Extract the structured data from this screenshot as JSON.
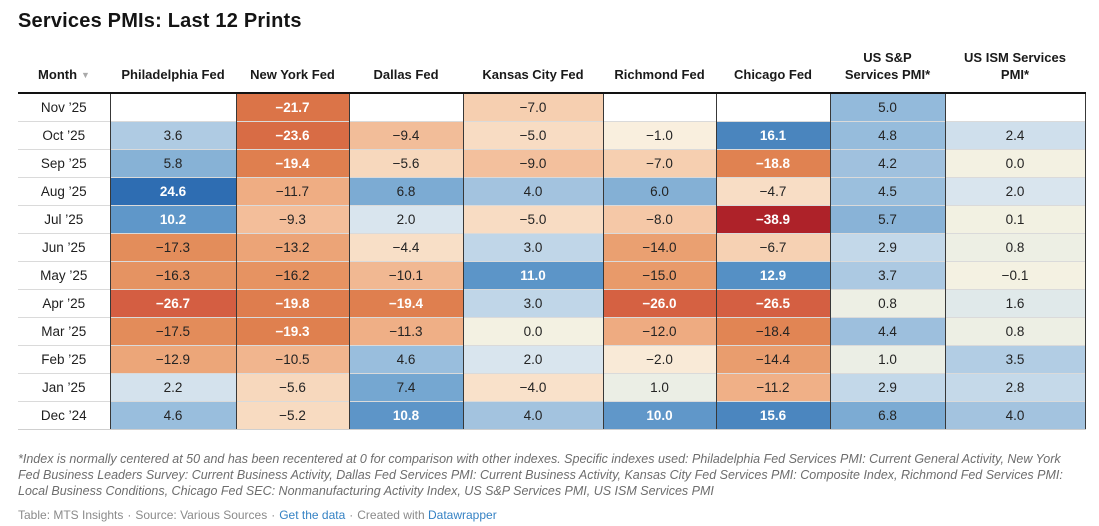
{
  "title": "Services PMIs: Last 12 Prints",
  "chart_data": {
    "type": "heatmap",
    "title": "Services PMIs: Last 12 Prints",
    "row_header": {
      "label": "Month",
      "sort_icon": "▼",
      "sort_direction": "descending"
    },
    "columns": [
      "Philadelphia Fed",
      "New York Fed",
      "Dallas Fed",
      "Kansas City Fed",
      "Richmond Fed",
      "Chicago Fed",
      "US S&P Services PMI*",
      "US ISM Services PMI*"
    ],
    "rows": [
      {
        "month": "Nov ’25",
        "values": [
          null,
          -21.7,
          null,
          -7.0,
          null,
          null,
          5.0,
          null
        ]
      },
      {
        "month": "Oct ’25",
        "values": [
          3.6,
          -23.6,
          -9.4,
          -5.0,
          -1.0,
          16.1,
          4.8,
          2.4
        ]
      },
      {
        "month": "Sep ’25",
        "values": [
          5.8,
          -19.4,
          -5.6,
          -9.0,
          -7.0,
          -18.8,
          4.2,
          0.0
        ]
      },
      {
        "month": "Aug ’25",
        "values": [
          24.6,
          -11.7,
          6.8,
          4.0,
          6.0,
          -4.7,
          4.5,
          2.0
        ]
      },
      {
        "month": "Jul ’25",
        "values": [
          10.2,
          -9.3,
          2.0,
          -5.0,
          -8.0,
          -38.9,
          5.7,
          0.1
        ]
      },
      {
        "month": "Jun ’25",
        "values": [
          -17.3,
          -13.2,
          -4.4,
          3.0,
          -14.0,
          -6.7,
          2.9,
          0.8
        ]
      },
      {
        "month": "May ’25",
        "values": [
          -16.3,
          -16.2,
          -10.1,
          11.0,
          -15.0,
          12.9,
          3.7,
          -0.1
        ]
      },
      {
        "month": "Apr ’25",
        "values": [
          -26.7,
          -19.8,
          -19.4,
          3.0,
          -26.0,
          -26.5,
          0.8,
          1.6
        ]
      },
      {
        "month": "Mar ’25",
        "values": [
          -17.5,
          -19.3,
          -11.3,
          0.0,
          -12.0,
          -18.4,
          4.4,
          0.8
        ]
      },
      {
        "month": "Feb ’25",
        "values": [
          -12.9,
          -10.5,
          4.6,
          2.0,
          -2.0,
          -14.4,
          1.0,
          3.5
        ]
      },
      {
        "month": "Jan ’25",
        "values": [
          2.2,
          -5.6,
          7.4,
          -4.0,
          1.0,
          -11.2,
          2.9,
          2.8
        ]
      },
      {
        "month": "Dec ’24",
        "values": [
          4.6,
          -5.2,
          10.8,
          4.0,
          10.0,
          15.6,
          6.8,
          4.0
        ]
      }
    ],
    "color_scale": {
      "stops": [
        [
          -40,
          "#aa1d27"
        ],
        [
          -28,
          "#d25840"
        ],
        [
          -22,
          "#da7347"
        ],
        [
          -19,
          "#e08150"
        ],
        [
          -17,
          "#e48f5d"
        ],
        [
          -15,
          "#e89a6a"
        ],
        [
          -13,
          "#eca578"
        ],
        [
          -11,
          "#f0b189"
        ],
        [
          -9,
          "#f3c09d"
        ],
        [
          -7,
          "#f6cfb0"
        ],
        [
          -5,
          "#f8dcc3"
        ],
        [
          -3,
          "#f9e5d0"
        ],
        [
          -1,
          "#f9efde"
        ],
        [
          0,
          "#f3f1e2"
        ],
        [
          1,
          "#ebeee5"
        ],
        [
          2,
          "#d9e5ee"
        ],
        [
          3,
          "#c0d6e8"
        ],
        [
          4,
          "#a3c3df"
        ],
        [
          5,
          "#93badb"
        ],
        [
          6,
          "#84b0d5"
        ],
        [
          8,
          "#6fa3cf"
        ],
        [
          10,
          "#6097c9"
        ],
        [
          13,
          "#5590c5"
        ],
        [
          16,
          "#4a85be"
        ],
        [
          20,
          "#3d79b8"
        ],
        [
          25,
          "#2d6cb2"
        ]
      ],
      "white_text_when_value_at_least": 10,
      "white_text_when_value_at_most": -18.5
    }
  },
  "footnote": "*Index is normally centered at 50 and has been recentered at 0 for comparison with other indexes. Specific indexes used: Philadelphia Fed Services PMI: Current General Activity, New York Fed Business Leaders Survey: Current Business Activity, Dallas Fed Services PMI: Current Business Activity, Kansas City Fed Services PMI: Composite Index, Richmond Fed Services PMI: Local Business Conditions, Chicago Fed SEC: Nonmanufacturing Activity Index, US S&P Services PMI, US ISM Services PMI",
  "credit": {
    "table_label": "Table: MTS Insights",
    "separator": "·",
    "source_label": "Source: Various Sources",
    "get_data_label": "Get the data",
    "created_with_label": "Created with",
    "datawrapper_label": "Datawrapper",
    "link_color": "#3582c4"
  }
}
